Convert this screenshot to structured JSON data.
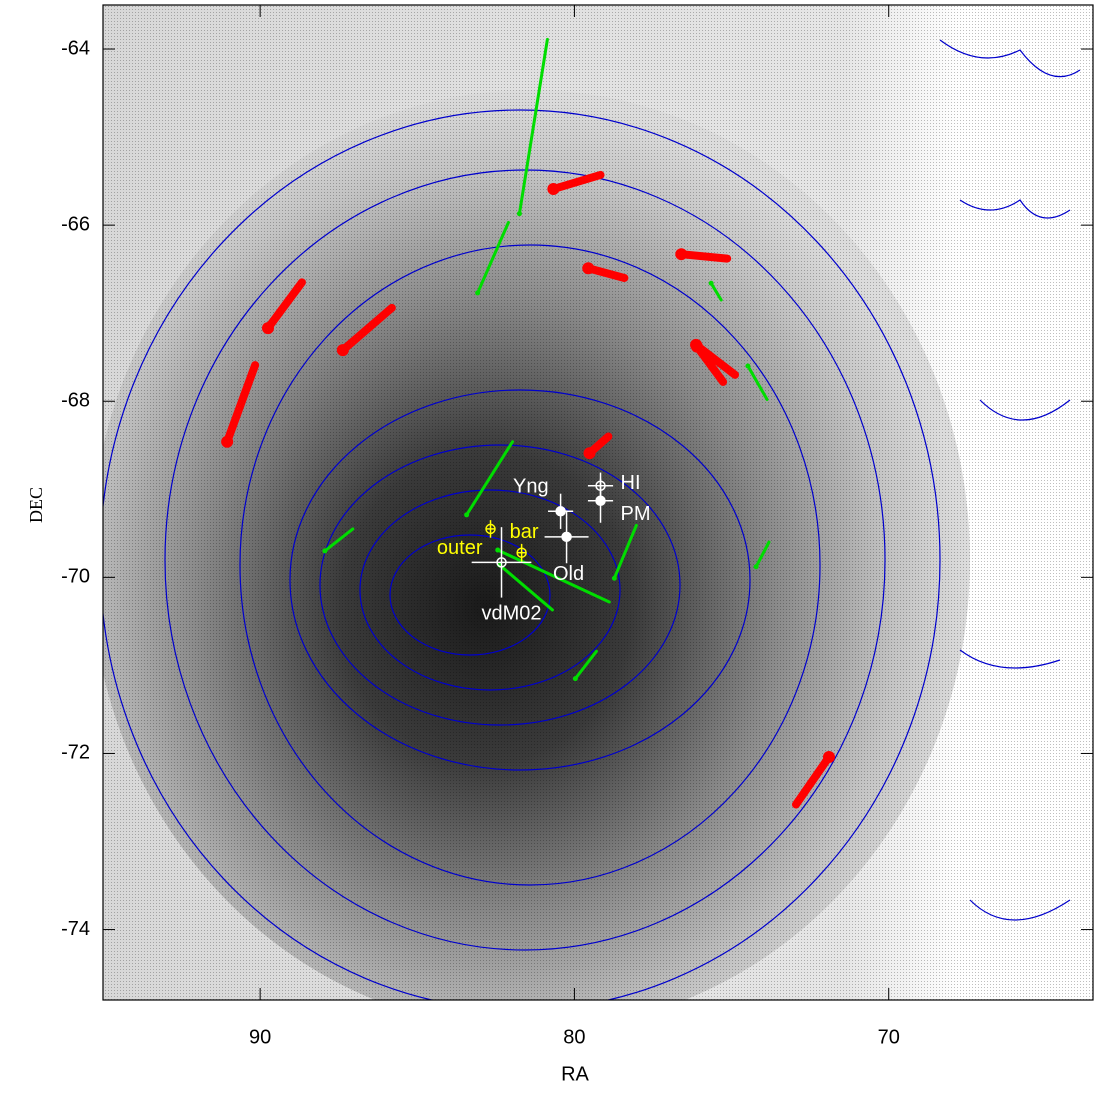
{
  "chart_data": {
    "type": "scatter",
    "xlabel": "RA",
    "ylabel": "DEC",
    "xlim": [
      95,
      63.5
    ],
    "ylim": [
      -74.8,
      -63.5
    ],
    "xticks": [
      90,
      80,
      70
    ],
    "yticks": [
      -64,
      -66,
      -68,
      -70,
      -72,
      -74
    ],
    "red_vectors": {
      "color": "#ff0000",
      "x0": [
        89.75,
        87.37,
        91.05,
        80.67,
        79.56,
        76.6,
        76.13,
        76.1,
        79.52,
        71.9
      ],
      "y0": [
        -67.17,
        -67.42,
        -68.46,
        -65.59,
        -66.49,
        -66.33,
        -67.36,
        -67.38,
        -68.59,
        -72.04
      ],
      "x1": [
        88.67,
        85.81,
        90.16,
        79.17,
        78.41,
        75.14,
        74.89,
        75.27,
        78.92,
        72.95
      ],
      "y1": [
        -66.65,
        -66.94,
        -67.59,
        -65.43,
        -66.6,
        -66.38,
        -67.7,
        -67.78,
        -68.4,
        -72.58
      ]
    },
    "green_vectors": {
      "color": "#00dd00",
      "x0": [
        83.08,
        81.75,
        75.65,
        74.48,
        83.43,
        87.94,
        82.44,
        82.38,
        78.73,
        79.97,
        74.22
      ],
      "y0": [
        -66.77,
        -65.87,
        -66.66,
        -67.6,
        -69.29,
        -69.7,
        -69.69,
        -69.86,
        -70.01,
        -71.15,
        -69.88
      ],
      "x1": [
        82.1,
        80.86,
        75.33,
        73.87,
        81.97,
        87.05,
        78.89,
        80.7,
        78.03,
        79.3,
        73.81
      ],
      "y1": [
        -65.97,
        -63.89,
        -66.85,
        -67.98,
        -68.46,
        -69.45,
        -70.28,
        -70.37,
        -69.41,
        -70.84,
        -69.6
      ]
    },
    "centers": [
      {
        "name": "HI",
        "x": 79.17,
        "y": -68.96,
        "xerr": 0.4,
        "yerr": 0.15,
        "color": "#ffffff",
        "filled": false
      },
      {
        "name": "PM",
        "x": 79.17,
        "y": -69.13,
        "xerr": 0.4,
        "yerr": 0.25,
        "color": "#ffffff",
        "filled": true
      },
      {
        "name": "Yng",
        "x": 80.44,
        "y": -69.25,
        "xerr": 0.4,
        "yerr": 0.2,
        "color": "#ffffff",
        "filled": true
      },
      {
        "name": "Old",
        "x": 80.25,
        "y": -69.54,
        "xerr": 0.7,
        "yerr": 0.3,
        "color": "#ffffff",
        "filled": true
      },
      {
        "name": "vdM02",
        "x": 82.32,
        "y": -69.83,
        "xerr": 0.95,
        "yerr": 0.4,
        "color": "#ffffff",
        "filled": false
      },
      {
        "name": "outer",
        "x": 82.67,
        "y": -69.45,
        "xerr": 0.15,
        "yerr": 0.1,
        "color": "#ffff00",
        "filled": false
      },
      {
        "name": "bar",
        "x": 81.68,
        "y": -69.72,
        "xerr": 0.15,
        "yerr": 0.1,
        "color": "#ffff00",
        "filled": false
      }
    ]
  }
}
